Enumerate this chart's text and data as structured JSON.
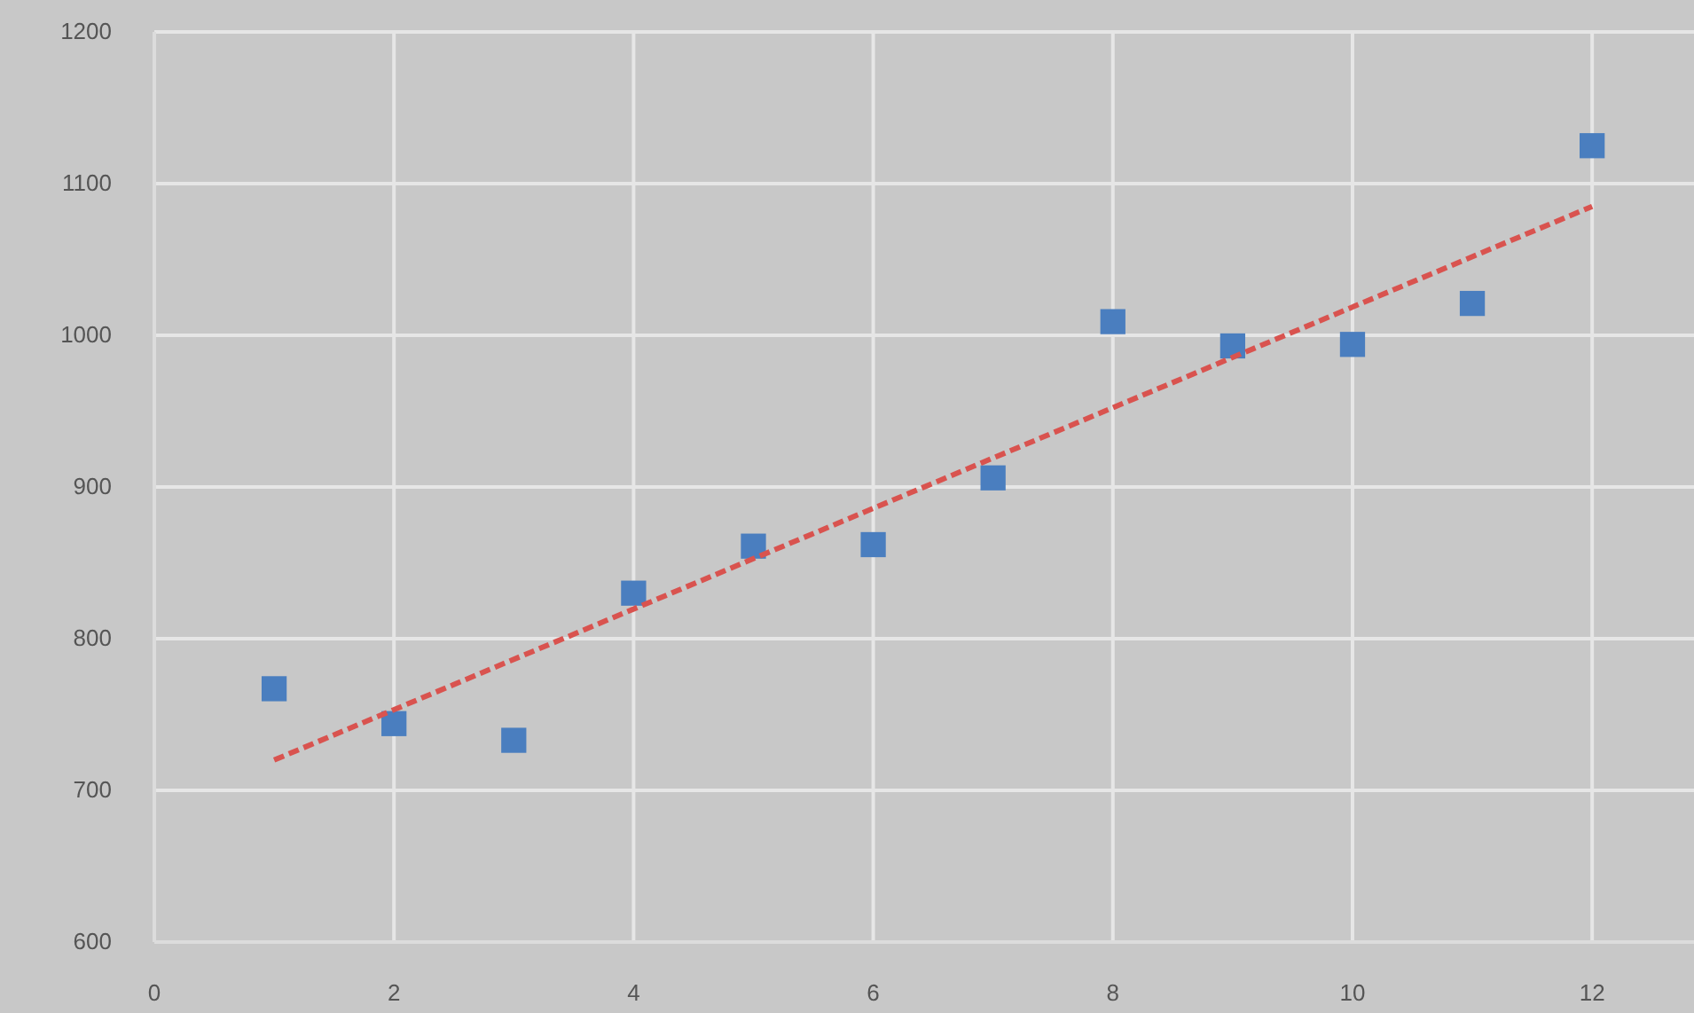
{
  "chart_data": {
    "type": "scatter",
    "xlim": [
      0,
      12.85
    ],
    "xticks": [
      0,
      2,
      4,
      6,
      8,
      10,
      12
    ],
    "ylim": [
      600,
      1200
    ],
    "yticks": [
      600,
      700,
      800,
      900,
      1000,
      1100,
      1200
    ],
    "grid": true,
    "marker": "square",
    "series": [
      {
        "color": "#4a7ebf",
        "x": [
          1,
          2,
          3,
          4,
          5,
          6,
          7,
          8,
          9,
          10,
          11,
          12
        ],
        "values": [
          767,
          744,
          733,
          830,
          861,
          862,
          906,
          1009,
          993,
          994,
          1021,
          1125
        ]
      },
      {
        "type": "line",
        "color": "#d9534f",
        "line_style": "dashed",
        "marker": "none",
        "x": [
          1,
          12
        ],
        "values": [
          720,
          1085
        ]
      }
    ]
  }
}
